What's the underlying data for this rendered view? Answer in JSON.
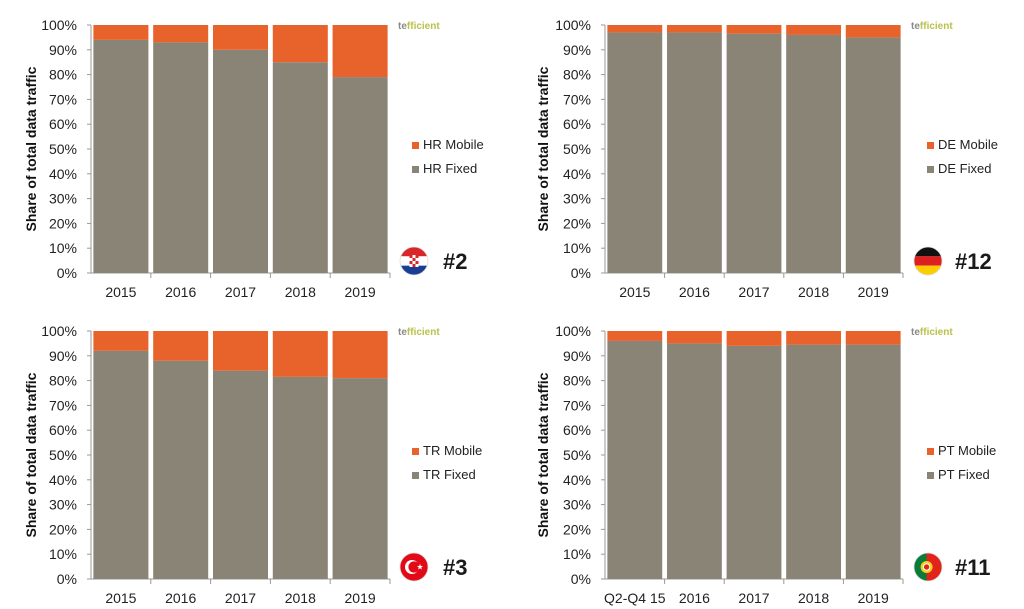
{
  "colors": {
    "mobile": "#E8622C",
    "fixed": "#8A8476",
    "axis": "#999999",
    "logo_te": "#8a8a8a",
    "logo_fficient": "#b9c24a"
  },
  "logo": {
    "part1": "te",
    "part2": "fficient"
  },
  "ylabel": "Share of total data traffic",
  "yticks": [
    "0%",
    "10%",
    "20%",
    "30%",
    "40%",
    "50%",
    "60%",
    "70%",
    "80%",
    "90%",
    "100%"
  ],
  "chart_data": [
    {
      "type": "bar",
      "stacked": true,
      "country": "HR",
      "flag": "croatia-flag-icon",
      "rank": "#2",
      "categories": [
        "2015",
        "2016",
        "2017",
        "2018",
        "2019"
      ],
      "series": [
        {
          "name": "HR Fixed",
          "values": [
            94,
            93,
            90,
            85,
            79
          ]
        },
        {
          "name": "HR Mobile",
          "values": [
            6,
            7,
            10,
            15,
            21
          ]
        }
      ],
      "ylabel": "Share of total data traffic",
      "ylim": [
        0,
        100
      ]
    },
    {
      "type": "bar",
      "stacked": true,
      "country": "DE",
      "flag": "germany-flag-icon",
      "rank": "#12",
      "categories": [
        "2015",
        "2016",
        "2017",
        "2018",
        "2019"
      ],
      "series": [
        {
          "name": "DE Fixed",
          "values": [
            97,
            97,
            96.5,
            96,
            95
          ]
        },
        {
          "name": "DE Mobile",
          "values": [
            3,
            3,
            3.5,
            4,
            5
          ]
        }
      ],
      "ylabel": "Share of total data traffic",
      "ylim": [
        0,
        100
      ]
    },
    {
      "type": "bar",
      "stacked": true,
      "country": "TR",
      "flag": "turkey-flag-icon",
      "rank": "#3",
      "categories": [
        "2015",
        "2016",
        "2017",
        "2018",
        "2019"
      ],
      "series": [
        {
          "name": "TR Fixed",
          "values": [
            92,
            88,
            84,
            81.5,
            81
          ]
        },
        {
          "name": "TR Mobile",
          "values": [
            8,
            12,
            16,
            18.5,
            19
          ]
        }
      ],
      "ylabel": "Share of total data traffic",
      "ylim": [
        0,
        100
      ]
    },
    {
      "type": "bar",
      "stacked": true,
      "country": "PT",
      "flag": "portugal-flag-icon",
      "rank": "#11",
      "categories": [
        "Q2-Q4 15",
        "2016",
        "2017",
        "2018",
        "2019"
      ],
      "series": [
        {
          "name": "PT Fixed",
          "values": [
            96,
            95,
            94,
            94.5,
            94.5
          ]
        },
        {
          "name": "PT Mobile",
          "values": [
            4,
            5,
            6,
            5.5,
            5.5
          ]
        }
      ],
      "ylabel": "Share of total data traffic",
      "ylim": [
        0,
        100
      ]
    }
  ]
}
